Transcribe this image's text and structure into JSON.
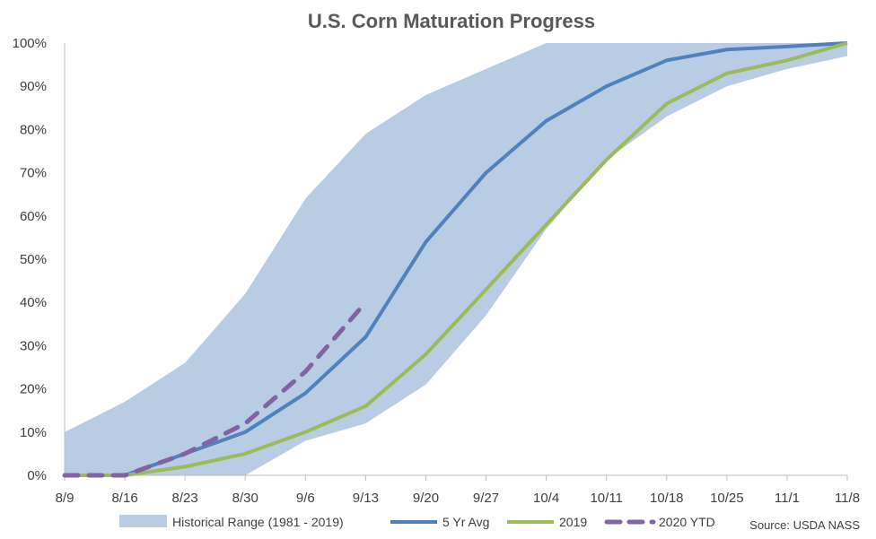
{
  "chart_data": {
    "type": "line",
    "title": "U.S. Corn Maturation Progress",
    "xlabel": "",
    "ylabel": "",
    "categories": [
      "8/9",
      "8/16",
      "8/23",
      "8/30",
      "9/6",
      "9/13",
      "9/20",
      "9/27",
      "10/4",
      "10/11",
      "10/18",
      "10/25",
      "11/1",
      "11/8"
    ],
    "y_ticks": [
      "0%",
      "10%",
      "20%",
      "30%",
      "40%",
      "50%",
      "60%",
      "70%",
      "80%",
      "90%",
      "100%"
    ],
    "ylim": [
      0,
      100
    ],
    "grid": false,
    "legend_position": "bottom",
    "range": {
      "name": "Historical Range (1981 - 2019)",
      "color": "#b8cce4",
      "low": [
        0,
        0,
        0,
        0,
        8,
        12,
        21,
        37,
        57,
        73,
        83,
        90,
        94,
        97
      ],
      "high": [
        10,
        17,
        26,
        42,
        64,
        79,
        88,
        94,
        100,
        100,
        100,
        100,
        100,
        100
      ]
    },
    "series": [
      {
        "name": "5 Yr Avg",
        "color": "#4f81bd",
        "dashed": false,
        "values": [
          0,
          0,
          5,
          10,
          19,
          32,
          54,
          70,
          82,
          90,
          96,
          98.5,
          99.2,
          100
        ]
      },
      {
        "name": "2019",
        "color": "#9bbb59",
        "dashed": false,
        "values": [
          0,
          0,
          2,
          5,
          10,
          16,
          28,
          43,
          58,
          73,
          86,
          93,
          96,
          100
        ]
      },
      {
        "name": "2020 YTD",
        "color": "#8064a2",
        "dashed": true,
        "values": [
          0,
          0,
          5,
          12,
          24,
          40,
          null,
          null,
          null,
          null,
          null,
          null,
          null,
          null
        ]
      }
    ],
    "source": "Source: USDA NASS"
  }
}
